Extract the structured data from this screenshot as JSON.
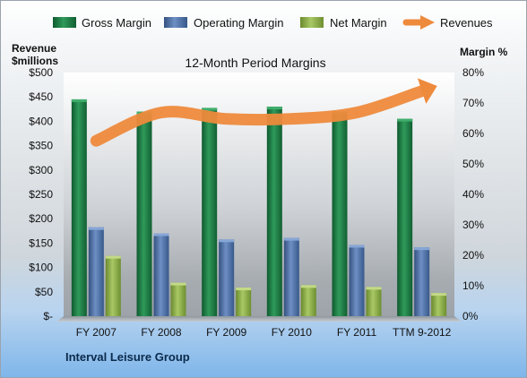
{
  "chart_data": {
    "type": "bar",
    "title": "12-Month Period Margins",
    "company": "Interval Leisure Group",
    "y_left": {
      "label_line1": "Revenue",
      "label_line2": "$millions",
      "min": 0,
      "max": 500,
      "step": 50,
      "ticks": [
        "$-",
        "$50",
        "$100",
        "$150",
        "$200",
        "$250",
        "$300",
        "$350",
        "$400",
        "$450",
        "$500"
      ]
    },
    "y_right": {
      "label": "Margin %",
      "min": 0,
      "max": 80,
      "step": 10,
      "ticks": [
        "0%",
        "10%",
        "20%",
        "30%",
        "40%",
        "50%",
        "60%",
        "70%",
        "80%"
      ]
    },
    "categories": [
      "FY 2007",
      "FY 2008",
      "FY 2009",
      "FY 2010",
      "FY 2011",
      "TTM 9-2012"
    ],
    "series": [
      {
        "name": "Gross Margin",
        "axis": "right",
        "color": "#1e7a45",
        "values": [
          71.2,
          67.2,
          68.4,
          68.8,
          67.2,
          64.8
        ]
      },
      {
        "name": "Operating Margin",
        "axis": "right",
        "color": "#4a6fa5",
        "values": [
          29.2,
          27.2,
          25.2,
          25.7,
          23.4,
          22.6
        ]
      },
      {
        "name": "Net Margin",
        "axis": "right",
        "color": "#8fb04a",
        "values": [
          19.8,
          11.0,
          9.4,
          10.2,
          9.6,
          7.6
        ]
      },
      {
        "name": "Revenues",
        "axis": "left",
        "type": "line",
        "color": "#ee8a3c",
        "values": [
          360,
          418,
          405,
          405,
          418,
          462
        ]
      }
    ],
    "legend_position": "top",
    "grid": false
  }
}
